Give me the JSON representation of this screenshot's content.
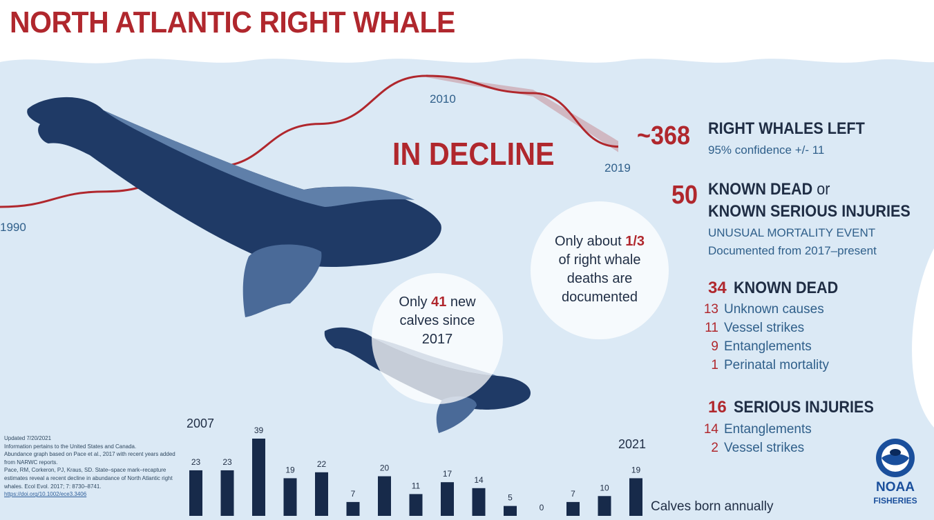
{
  "title": "NORTH ATLANTIC RIGHT WHALE",
  "decline_label": "IN DECLINE",
  "abundance_years": {
    "start": "1990",
    "peak": "2010",
    "end": "2019"
  },
  "abundance_trend": {
    "x": [
      1990,
      1995,
      2000,
      2005,
      2010,
      2015,
      2019
    ],
    "y": [
      270,
      295,
      335,
      405,
      483,
      455,
      368
    ]
  },
  "whales_left": {
    "value": "~368",
    "label": "RIGHT WHALES LEFT",
    "confidence": "95% confidence +/- 11"
  },
  "umE": {
    "value": "50",
    "label_line1": "KNOWN DEAD",
    "label_or": "or",
    "label_line2": "KNOWN SERIOUS INJURIES",
    "event": "UNUSUAL MORTALITY EVENT",
    "documented": "Documented from 2017–present"
  },
  "known_dead": {
    "value": "34",
    "label": "KNOWN DEAD",
    "items": [
      {
        "count": "13",
        "label": "Unknown causes"
      },
      {
        "count": "11",
        "label": "Vessel strikes"
      },
      {
        "count": "9",
        "label": "Entanglements"
      },
      {
        "count": "1",
        "label": "Perinatal mortality"
      }
    ]
  },
  "serious_injuries": {
    "value": "16",
    "label": "SERIOUS INJURIES",
    "items": [
      {
        "count": "14",
        "label": "Entanglements"
      },
      {
        "count": "2",
        "label": "Vessel strikes"
      }
    ]
  },
  "bubble_deaths": {
    "pre": "Only about",
    "fraction": "1/3",
    "rest1": "of right whale",
    "rest2": "deaths are",
    "rest3": "documented"
  },
  "bubble_calves": {
    "pre": "Only",
    "count": "41",
    "post": "new",
    "line2": "calves since",
    "line3": "2017"
  },
  "fine_print": {
    "updated": "Updated 7/20/2021",
    "l1": "Information pertains to the United States and Canada.",
    "l2": "Abundance graph based on Pace et al., 2017 with recent years added from NARWC reports.",
    "l3": "Pace, RM, Corkeron, PJ, Kraus, SD. State–space mark–recapture estimates reveal a recent decline in abundance of North Atlantic right whales. Ecol Evol. 2017; 7: 8730–8741.",
    "link": "https://doi.org/10.1002/ece3.3406"
  },
  "calves_chart": {
    "start_label": "2007",
    "end_label": "2021",
    "caption": "Calves born annually",
    "bar_color": "#172a4a"
  },
  "chart_data": {
    "type": "bar",
    "categories": [
      "2007",
      "2008",
      "2009",
      "2010",
      "2011",
      "2012",
      "2013",
      "2014",
      "2015",
      "2016",
      "2017",
      "2018",
      "2019",
      "2020",
      "2021"
    ],
    "values": [
      23,
      23,
      39,
      19,
      22,
      7,
      20,
      11,
      17,
      14,
      5,
      0,
      7,
      10,
      19
    ],
    "xlabel": "Calves born annually"
  },
  "logo": {
    "line1": "NOAA",
    "line2": "FISHERIES"
  },
  "colors": {
    "accent_red": "#b0272d",
    "navy": "#172a4a",
    "ocean": "#dbe9f5",
    "text_blue": "#2f5f8a"
  }
}
